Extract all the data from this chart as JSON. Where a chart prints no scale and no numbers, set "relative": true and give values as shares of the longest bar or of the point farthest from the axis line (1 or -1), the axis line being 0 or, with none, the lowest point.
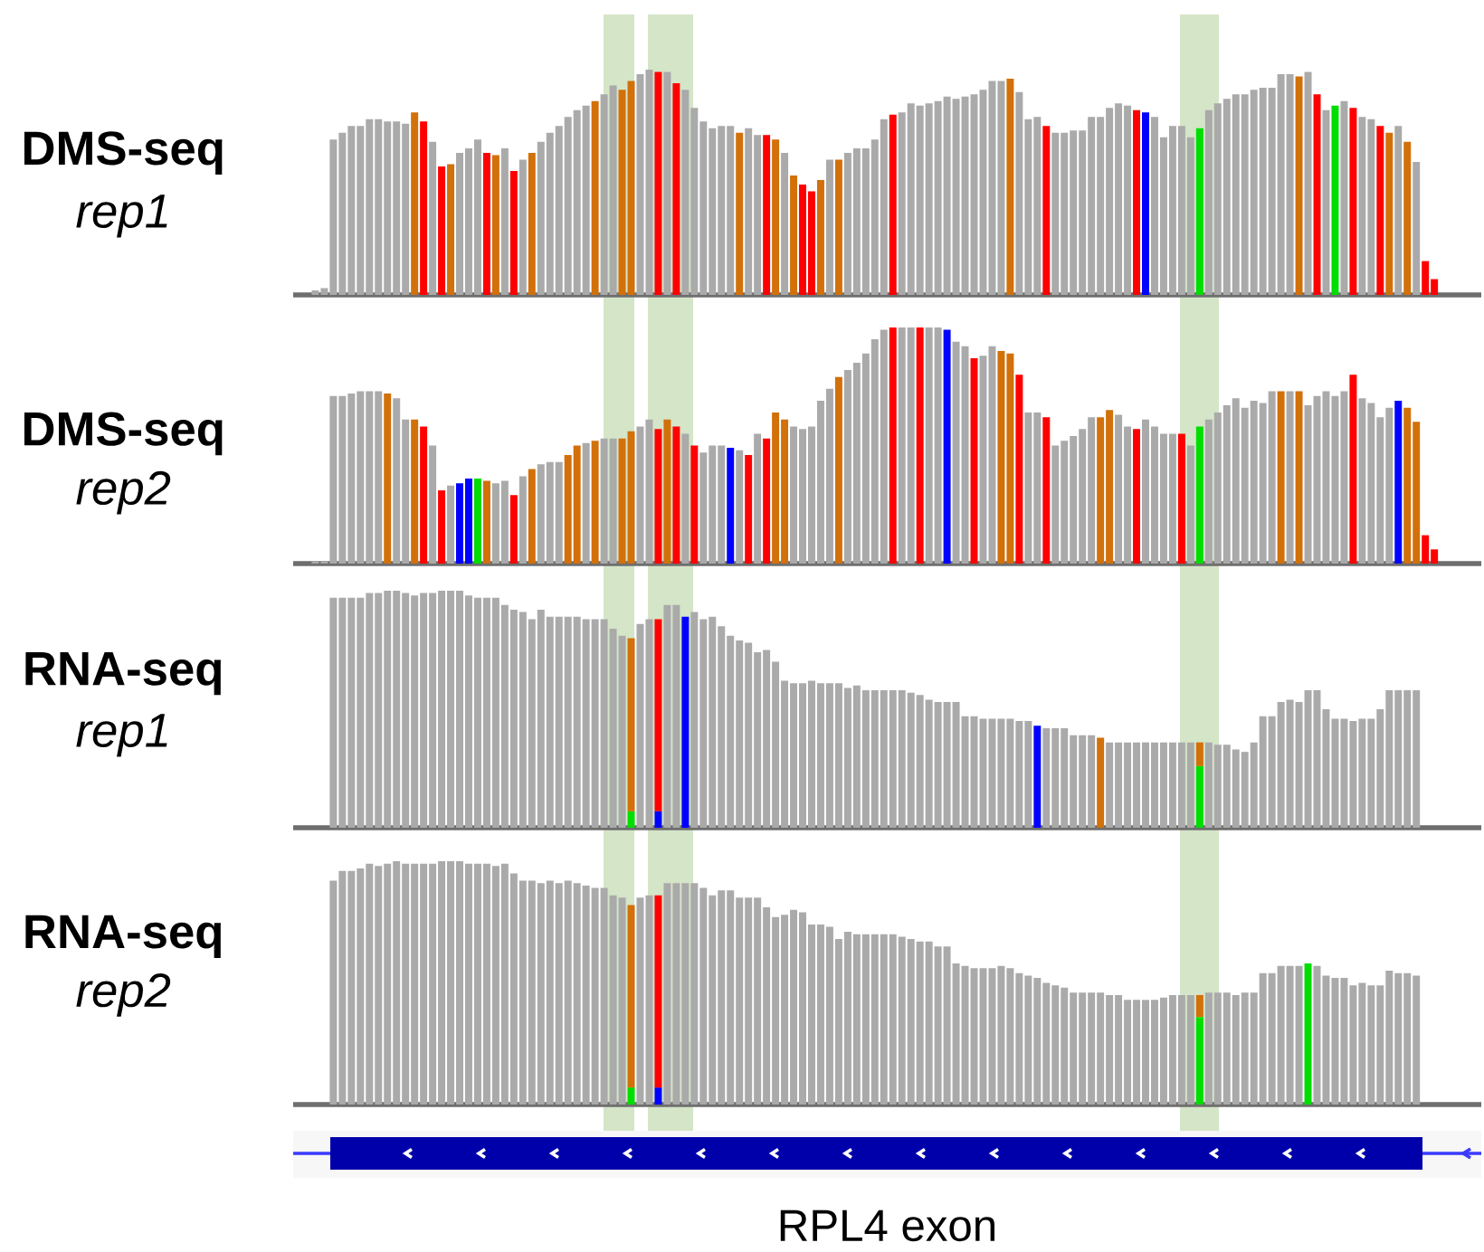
{
  "chart_data": [
    {
      "type": "bar",
      "title": "DMS-seq",
      "subtitle": "rep1",
      "relative": true,
      "categories": [
        null,
        null,
        null,
        null,
        null,
        null,
        null,
        null,
        null,
        null,
        null,
        null,
        null,
        null,
        null,
        null,
        null,
        null,
        null,
        null,
        null,
        null,
        null,
        null,
        null,
        null,
        null,
        null,
        null,
        null,
        null,
        null,
        null,
        null,
        null,
        null,
        null,
        null,
        null,
        null,
        null,
        null,
        null,
        null,
        null,
        null,
        null,
        null,
        null,
        null,
        null,
        null,
        null,
        null,
        null,
        null,
        null,
        null,
        null,
        null,
        null,
        null,
        null,
        null,
        null,
        null,
        null,
        null,
        null,
        null,
        null,
        null,
        null,
        null,
        null,
        null,
        null,
        null,
        null,
        null,
        null,
        null,
        null,
        null,
        null,
        null,
        null,
        null,
        null,
        null,
        null,
        null,
        null,
        null,
        null,
        null,
        null,
        null,
        null,
        null,
        null,
        null,
        null,
        null,
        null,
        null,
        null,
        null,
        null,
        null,
        null,
        null,
        null,
        null,
        null,
        null,
        null,
        null,
        null,
        null,
        null,
        null,
        null,
        null,
        null
      ],
      "series": [
        {
          "values": [
            0.02,
            0.03,
            0.69,
            0.72,
            0.75,
            0.75,
            0.78,
            0.78,
            0.77,
            0.77,
            0.76,
            0.81,
            0.77,
            0.68,
            0.57,
            0.58,
            0.63,
            0.65,
            0.69,
            0.63,
            0.62,
            0.65,
            0.55,
            0.6,
            0.63,
            0.68,
            0.72,
            0.75,
            0.79,
            0.82,
            0.84,
            0.86,
            0.89,
            0.93,
            0.91,
            0.95,
            0.98,
            1,
            0.99,
            0.99,
            0.94,
            0.91,
            0.83,
            0.77,
            0.74,
            0.75,
            0.75,
            0.72,
            0.74,
            0.71,
            0.71,
            0.69,
            0.63,
            0.53,
            0.49,
            0.46,
            0.51,
            0.6,
            0.6,
            0.63,
            0.65,
            0.65,
            0.69,
            0.78,
            0.8,
            0.81,
            0.85,
            0.84,
            0.85,
            0.86,
            0.88,
            0.87,
            0.88,
            0.89,
            0.91,
            0.95,
            0.95,
            0.96,
            0.9,
            0.78,
            0.79,
            0.75,
            0.72,
            0.72,
            0.73,
            0.73,
            0.79,
            0.79,
            0.83,
            0.85,
            0.84,
            0.82,
            0.81,
            0.79,
            0.7,
            0.75,
            0.75,
            0.7,
            0.74,
            0.82,
            0.85,
            0.87,
            0.89,
            0.89,
            0.91,
            0.92,
            0.92,
            0.98,
            0.98,
            0.97,
            0.99,
            0.89,
            0.82,
            0.84,
            0.86,
            0.83,
            0.79,
            0.78,
            0.75,
            0.72,
            0.75,
            0.68,
            0.59,
            0.15,
            0.07
          ],
          "colors": [
            "#aaaaaa",
            "#aaaaaa",
            "#aaaaaa",
            "#aaaaaa",
            "#aaaaaa",
            "#aaaaaa",
            "#aaaaaa",
            "#aaaaaa",
            "#aaaaaa",
            "#aaaaaa",
            "#aaaaaa",
            "#d2700a",
            "#ff0000",
            "#aaaaaa",
            "#ff0000",
            "#d2700a",
            "#aaaaaa",
            "#aaaaaa",
            "#aaaaaa",
            "#ff0000",
            "#d2700a",
            "#aaaaaa",
            "#ff0000",
            "#aaaaaa",
            "#d2700a",
            "#aaaaaa",
            "#aaaaaa",
            "#aaaaaa",
            "#aaaaaa",
            "#aaaaaa",
            "#aaaaaa",
            "#d2700a",
            "#aaaaaa",
            "#aaaaaa",
            "#d2700a",
            "#d2700a",
            "#aaaaaa",
            "#aaaaaa",
            "#ff0000",
            "#aaaaaa",
            "#ff0000",
            "#aaaaaa",
            "#aaaaaa",
            "#aaaaaa",
            "#aaaaaa",
            "#aaaaaa",
            "#aaaaaa",
            "#d2700a",
            "#aaaaaa",
            "#aaaaaa",
            "#ff0000",
            "#d2700a",
            "#aaaaaa",
            "#d2700a",
            "#ff0000",
            "#ff0000",
            "#d2700a",
            "#aaaaaa",
            "#d2700a",
            "#aaaaaa",
            "#aaaaaa",
            "#aaaaaa",
            "#aaaaaa",
            "#aaaaaa",
            "#ff0000",
            "#aaaaaa",
            "#aaaaaa",
            "#aaaaaa",
            "#aaaaaa",
            "#aaaaaa",
            "#aaaaaa",
            "#aaaaaa",
            "#aaaaaa",
            "#aaaaaa",
            "#aaaaaa",
            "#aaaaaa",
            "#aaaaaa",
            "#d2700a",
            "#aaaaaa",
            "#aaaaaa",
            "#aaaaaa",
            "#ff0000",
            "#aaaaaa",
            "#aaaaaa",
            "#aaaaaa",
            "#aaaaaa",
            "#aaaaaa",
            "#aaaaaa",
            "#aaaaaa",
            "#aaaaaa",
            "#aaaaaa",
            "#ff0000",
            "#0000ff",
            "#aaaaaa",
            "#aaaaaa",
            "#aaaaaa",
            "#aaaaaa",
            "#aaaaaa",
            "#00dd00",
            "#aaaaaa",
            "#aaaaaa",
            "#aaaaaa",
            "#aaaaaa",
            "#aaaaaa",
            "#aaaaaa",
            "#aaaaaa",
            "#aaaaaa",
            "#aaaaaa",
            "#aaaaaa",
            "#d2700a",
            "#aaaaaa",
            "#ff0000",
            "#aaaaaa",
            "#00dd00",
            "#aaaaaa",
            "#ff0000",
            "#aaaaaa",
            "#aaaaaa",
            "#ff0000",
            "#d2700a",
            "#aaaaaa",
            "#d2700a",
            "#aaaaaa",
            "#ff0000",
            "#ff0000"
          ]
        }
      ]
    },
    {
      "type": "bar",
      "title": "DMS-seq",
      "subtitle": "rep2",
      "relative": true,
      "categories": [
        null,
        null,
        null,
        null,
        null,
        null,
        null,
        null,
        null,
        null,
        null,
        null,
        null,
        null,
        null,
        null,
        null,
        null,
        null,
        null,
        null,
        null,
        null,
        null,
        null,
        null,
        null,
        null,
        null,
        null,
        null,
        null,
        null,
        null,
        null,
        null,
        null,
        null,
        null,
        null,
        null,
        null,
        null,
        null,
        null,
        null,
        null,
        null,
        null,
        null,
        null,
        null,
        null,
        null,
        null,
        null,
        null,
        null,
        null,
        null,
        null,
        null,
        null,
        null,
        null,
        null,
        null,
        null,
        null,
        null,
        null,
        null,
        null,
        null,
        null,
        null,
        null,
        null,
        null,
        null,
        null,
        null,
        null,
        null,
        null,
        null,
        null,
        null,
        null,
        null,
        null,
        null,
        null,
        null,
        null,
        null,
        null,
        null,
        null,
        null,
        null,
        null,
        null,
        null,
        null,
        null,
        null,
        null,
        null,
        null,
        null,
        null,
        null,
        null,
        null,
        null,
        null,
        null,
        null,
        null,
        null,
        null,
        null,
        null,
        null
      ],
      "series": [
        {
          "values": [
            0.01,
            0.01,
            0.71,
            0.71,
            0.72,
            0.73,
            0.73,
            0.73,
            0.72,
            0.7,
            0.61,
            0.61,
            0.58,
            0.5,
            0.31,
            0.33,
            0.34,
            0.36,
            0.36,
            0.35,
            0.34,
            0.35,
            0.29,
            0.37,
            0.4,
            0.42,
            0.43,
            0.43,
            0.46,
            0.5,
            0.51,
            0.52,
            0.53,
            0.53,
            0.53,
            0.56,
            0.58,
            0.61,
            0.57,
            0.61,
            0.58,
            0.55,
            0.5,
            0.47,
            0.5,
            0.5,
            0.49,
            0.48,
            0.46,
            0.55,
            0.53,
            0.64,
            0.61,
            0.58,
            0.57,
            0.58,
            0.69,
            0.74,
            0.79,
            0.82,
            0.85,
            0.89,
            0.95,
            0.99,
            1,
            1,
            1,
            1,
            1,
            1,
            0.99,
            0.94,
            0.92,
            0.87,
            0.88,
            0.92,
            0.9,
            0.89,
            0.8,
            0.64,
            0.64,
            0.62,
            0.5,
            0.52,
            0.54,
            0.57,
            0.62,
            0.62,
            0.65,
            0.63,
            0.58,
            0.57,
            0.61,
            0.58,
            0.55,
            0.55,
            0.55,
            0.5,
            0.58,
            0.61,
            0.64,
            0.67,
            0.7,
            0.66,
            0.69,
            0.68,
            0.73,
            0.73,
            0.73,
            0.73,
            0.67,
            0.71,
            0.73,
            0.71,
            0.73,
            0.8,
            0.7,
            0.68,
            0.62,
            0.66,
            0.69,
            0.66,
            0.6,
            0.12,
            0.06
          ],
          "colors": [
            "#aaaaaa",
            "#aaaaaa",
            "#aaaaaa",
            "#aaaaaa",
            "#aaaaaa",
            "#aaaaaa",
            "#aaaaaa",
            "#aaaaaa",
            "#d2700a",
            "#aaaaaa",
            "#aaaaaa",
            "#d2700a",
            "#ff0000",
            "#aaaaaa",
            "#ff0000",
            "#aaaaaa",
            "#0000ff",
            "#0000ff",
            "#00dd00",
            "#d2700a",
            "#aaaaaa",
            "#aaaaaa",
            "#ff0000",
            "#aaaaaa",
            "#d2700a",
            "#aaaaaa",
            "#aaaaaa",
            "#aaaaaa",
            "#d2700a",
            "#d2700a",
            "#aaaaaa",
            "#d2700a",
            "#aaaaaa",
            "#aaaaaa",
            "#d2700a",
            "#d2700a",
            "#aaaaaa",
            "#aaaaaa",
            "#ff0000",
            "#d2700a",
            "#ff0000",
            "#aaaaaa",
            "#ff0000",
            "#aaaaaa",
            "#aaaaaa",
            "#aaaaaa",
            "#0000ff",
            "#aaaaaa",
            "#ff0000",
            "#aaaaaa",
            "#ff0000",
            "#d2700a",
            "#d2700a",
            "#aaaaaa",
            "#aaaaaa",
            "#aaaaaa",
            "#aaaaaa",
            "#aaaaaa",
            "#d2700a",
            "#aaaaaa",
            "#aaaaaa",
            "#aaaaaa",
            "#aaaaaa",
            "#aaaaaa",
            "#ff0000",
            "#aaaaaa",
            "#aaaaaa",
            "#ff0000",
            "#aaaaaa",
            "#aaaaaa",
            "#0000ff",
            "#aaaaaa",
            "#aaaaaa",
            "#ff0000",
            "#aaaaaa",
            "#aaaaaa",
            "#d2700a",
            "#d2700a",
            "#ff0000",
            "#aaaaaa",
            "#aaaaaa",
            "#ff0000",
            "#aaaaaa",
            "#aaaaaa",
            "#aaaaaa",
            "#aaaaaa",
            "#aaaaaa",
            "#d2700a",
            "#d2700a",
            "#aaaaaa",
            "#aaaaaa",
            "#ff0000",
            "#aaaaaa",
            "#aaaaaa",
            "#aaaaaa",
            "#aaaaaa",
            "#ff0000",
            "#aaaaaa",
            "#00dd00",
            "#aaaaaa",
            "#aaaaaa",
            "#aaaaaa",
            "#aaaaaa",
            "#aaaaaa",
            "#aaaaaa",
            "#aaaaaa",
            "#aaaaaa",
            "#d2700a",
            "#aaaaaa",
            "#d2700a",
            "#aaaaaa",
            "#aaaaaa",
            "#aaaaaa",
            "#aaaaaa",
            "#aaaaaa",
            "#ff0000",
            "#aaaaaa",
            "#aaaaaa",
            "#aaaaaa",
            "#aaaaaa",
            "#0000ff",
            "#d2700a",
            "#d2700a",
            "#ff0000",
            "#ff0000"
          ]
        }
      ]
    },
    {
      "type": "bar",
      "title": "RNA-seq",
      "subtitle": "rep1",
      "relative": true,
      "stacked": true,
      "categories": [
        null,
        null,
        null,
        null,
        null,
        null,
        null,
        null,
        null,
        null,
        null,
        null,
        null,
        null,
        null,
        null,
        null,
        null,
        null,
        null,
        null,
        null,
        null,
        null,
        null,
        null,
        null,
        null,
        null,
        null,
        null,
        null,
        null,
        null,
        null,
        null,
        null,
        null,
        null,
        null,
        null,
        null,
        null,
        null,
        null,
        null,
        null,
        null,
        null,
        null,
        null,
        null,
        null,
        null,
        null,
        null,
        null,
        null,
        null,
        null,
        null,
        null,
        null,
        null,
        null,
        null,
        null,
        null,
        null,
        null,
        null,
        null,
        null,
        null,
        null,
        null,
        null,
        null,
        null,
        null,
        null,
        null,
        null,
        null,
        null,
        null,
        null,
        null,
        null,
        null,
        null,
        null,
        null,
        null,
        null,
        null,
        null,
        null,
        null,
        null,
        null,
        null,
        null,
        null,
        null,
        null,
        null,
        null,
        null,
        null,
        null,
        null,
        null,
        null,
        null,
        null,
        null,
        null,
        null,
        null,
        null,
        null,
        null,
        null,
        null
      ],
      "series": [
        {
          "values": [
            null,
            null,
            null,
            null,
            null,
            null,
            null,
            null,
            null,
            null,
            null,
            null,
            null,
            null,
            null,
            null,
            null,
            null,
            null,
            null,
            null,
            null,
            null,
            null,
            null,
            null,
            null,
            null,
            null,
            null,
            null,
            null,
            null,
            null,
            null,
            0.07,
            null,
            null,
            0.07,
            null,
            null,
            null,
            null,
            null,
            null,
            null,
            null,
            null,
            null,
            null,
            null,
            null,
            null,
            null,
            null,
            null,
            null,
            null,
            null,
            null,
            null,
            null,
            null,
            null,
            null,
            null,
            null,
            null,
            null,
            null,
            null,
            null,
            null,
            null,
            null,
            null,
            null,
            null,
            null,
            null,
            null,
            null,
            null,
            null,
            null,
            null,
            null,
            null,
            null,
            null,
            null,
            null,
            null,
            null,
            null,
            null,
            null,
            null,
            0.26,
            null,
            null,
            null,
            null,
            null,
            null,
            null,
            null,
            null,
            null,
            null,
            null,
            null,
            null,
            null,
            null,
            null,
            null,
            null,
            null,
            null,
            null,
            null,
            null,
            null,
            null
          ],
          "colors": [
            null,
            null,
            null,
            null,
            null,
            null,
            null,
            null,
            null,
            null,
            null,
            null,
            null,
            null,
            null,
            null,
            null,
            null,
            null,
            null,
            null,
            null,
            null,
            null,
            null,
            null,
            null,
            null,
            null,
            null,
            null,
            null,
            null,
            null,
            null,
            "#00dd00",
            null,
            null,
            "#0000ff",
            null,
            null,
            null,
            null,
            null,
            null,
            null,
            null,
            null,
            null,
            null,
            null,
            null,
            null,
            null,
            null,
            null,
            null,
            null,
            null,
            null,
            null,
            null,
            null,
            null,
            null,
            null,
            null,
            null,
            null,
            null,
            null,
            null,
            null,
            null,
            null,
            null,
            null,
            null,
            null,
            null,
            null,
            null,
            null,
            null,
            null,
            null,
            null,
            null,
            null,
            null,
            null,
            null,
            null,
            null,
            null,
            null,
            null,
            null,
            "#00dd00",
            null,
            null,
            null,
            null,
            null,
            null,
            null,
            null,
            null,
            null,
            null,
            null,
            null,
            null,
            null,
            null,
            null,
            null,
            null,
            null,
            null,
            null,
            null,
            null,
            null,
            null
          ]
        },
        {
          "values": [
            null,
            null,
            0.97,
            0.97,
            0.97,
            0.97,
            0.99,
            0.99,
            1,
            1,
            0.99,
            0.98,
            0.99,
            0.99,
            1,
            1,
            1,
            0.98,
            0.97,
            0.97,
            0.97,
            0.94,
            0.92,
            0.91,
            0.88,
            0.92,
            0.89,
            0.89,
            0.89,
            0.89,
            0.88,
            0.88,
            0.88,
            0.84,
            0.81,
            0.73,
            0.86,
            0.88,
            0.81,
            0.94,
            0.94,
            0.89,
            0.91,
            0.88,
            0.89,
            0.85,
            0.81,
            0.79,
            0.78,
            0.74,
            0.75,
            0.7,
            0.62,
            0.61,
            0.61,
            0.62,
            0.61,
            0.61,
            0.61,
            0.59,
            0.6,
            0.58,
            0.58,
            0.58,
            0.58,
            0.58,
            0.57,
            0.56,
            0.54,
            0.53,
            0.53,
            0.53,
            0.47,
            0.47,
            0.46,
            0.46,
            0.46,
            0.46,
            0.45,
            0.45,
            0.43,
            0.42,
            0.42,
            0.42,
            0.39,
            0.39,
            0.39,
            0.38,
            0.36,
            0.36,
            0.36,
            0.36,
            0.36,
            0.36,
            0.36,
            0.36,
            0.36,
            0.36,
            0.1,
            0.36,
            0.35,
            0.35,
            0.33,
            0.32,
            0.36,
            0.47,
            0.47,
            0.53,
            0.54,
            0.53,
            0.58,
            0.58,
            0.5,
            0.46,
            0.46,
            0.45,
            0.46,
            0.46,
            0.5,
            0.58,
            0.58,
            0.58,
            0.58,
            null,
            null
          ],
          "colors": [
            "#aaaaaa",
            "#aaaaaa",
            "#aaaaaa",
            "#aaaaaa",
            "#aaaaaa",
            "#aaaaaa",
            "#aaaaaa",
            "#aaaaaa",
            "#aaaaaa",
            "#aaaaaa",
            "#aaaaaa",
            "#aaaaaa",
            "#aaaaaa",
            "#aaaaaa",
            "#aaaaaa",
            "#aaaaaa",
            "#aaaaaa",
            "#aaaaaa",
            "#aaaaaa",
            "#aaaaaa",
            "#aaaaaa",
            "#aaaaaa",
            "#aaaaaa",
            "#aaaaaa",
            "#aaaaaa",
            "#aaaaaa",
            "#aaaaaa",
            "#aaaaaa",
            "#aaaaaa",
            "#aaaaaa",
            "#aaaaaa",
            "#aaaaaa",
            "#aaaaaa",
            "#aaaaaa",
            "#aaaaaa",
            "#d2700a",
            "#aaaaaa",
            "#aaaaaa",
            "#ff0000",
            "#aaaaaa",
            "#aaaaaa",
            "#0000ff",
            "#aaaaaa",
            "#aaaaaa",
            "#aaaaaa",
            "#aaaaaa",
            "#aaaaaa",
            "#aaaaaa",
            "#aaaaaa",
            "#aaaaaa",
            "#aaaaaa",
            "#aaaaaa",
            "#aaaaaa",
            "#aaaaaa",
            "#aaaaaa",
            "#aaaaaa",
            "#aaaaaa",
            "#aaaaaa",
            "#aaaaaa",
            "#aaaaaa",
            "#aaaaaa",
            "#aaaaaa",
            "#aaaaaa",
            "#aaaaaa",
            "#aaaaaa",
            "#aaaaaa",
            "#aaaaaa",
            "#aaaaaa",
            "#aaaaaa",
            "#aaaaaa",
            "#aaaaaa",
            "#aaaaaa",
            "#aaaaaa",
            "#aaaaaa",
            "#aaaaaa",
            "#aaaaaa",
            "#aaaaaa",
            "#aaaaaa",
            "#aaaaaa",
            "#aaaaaa",
            "#0000ff",
            "#aaaaaa",
            "#aaaaaa",
            "#aaaaaa",
            "#aaaaaa",
            "#aaaaaa",
            "#aaaaaa",
            "#d2700a",
            "#aaaaaa",
            "#aaaaaa",
            "#aaaaaa",
            "#aaaaaa",
            "#aaaaaa",
            "#aaaaaa",
            "#aaaaaa",
            "#aaaaaa",
            "#aaaaaa",
            "#aaaaaa",
            "#d2700a",
            "#aaaaaa",
            "#aaaaaa",
            "#aaaaaa",
            "#aaaaaa",
            "#aaaaaa",
            "#aaaaaa",
            "#aaaaaa",
            "#aaaaaa",
            "#aaaaaa",
            "#aaaaaa",
            "#aaaaaa",
            "#aaaaaa",
            "#aaaaaa",
            "#aaaaaa",
            "#aaaaaa",
            "#aaaaaa",
            "#aaaaaa",
            "#aaaaaa",
            "#aaaaaa",
            "#aaaaaa",
            "#aaaaaa",
            "#aaaaaa",
            "#aaaaaa",
            "#aaaaaa",
            "#aaaaaa",
            "#aaaaaa"
          ]
        }
      ]
    },
    {
      "type": "bar",
      "title": "RNA-seq",
      "subtitle": "rep2",
      "xlabel": "RPL4 exon",
      "relative": true,
      "stacked": true,
      "categories": [
        null,
        null,
        null,
        null,
        null,
        null,
        null,
        null,
        null,
        null,
        null,
        null,
        null,
        null,
        null,
        null,
        null,
        null,
        null,
        null,
        null,
        null,
        null,
        null,
        null,
        null,
        null,
        null,
        null,
        null,
        null,
        null,
        null,
        null,
        null,
        null,
        null,
        null,
        null,
        null,
        null,
        null,
        null,
        null,
        null,
        null,
        null,
        null,
        null,
        null,
        null,
        null,
        null,
        null,
        null,
        null,
        null,
        null,
        null,
        null,
        null,
        null,
        null,
        null,
        null,
        null,
        null,
        null,
        null,
        null,
        null,
        null,
        null,
        null,
        null,
        null,
        null,
        null,
        null,
        null,
        null,
        null,
        null,
        null,
        null,
        null,
        null,
        null,
        null,
        null,
        null,
        null,
        null,
        null,
        null,
        null,
        null,
        null,
        null,
        null,
        null,
        null,
        null,
        null,
        null,
        null,
        null,
        null,
        null,
        null,
        null,
        null,
        null,
        null,
        null,
        null,
        null,
        null,
        null,
        null,
        null,
        null,
        null,
        null,
        null
      ],
      "series": [
        {
          "values": [
            null,
            null,
            null,
            null,
            null,
            null,
            null,
            null,
            null,
            null,
            null,
            null,
            null,
            null,
            null,
            null,
            null,
            null,
            null,
            null,
            null,
            null,
            null,
            null,
            null,
            null,
            null,
            null,
            null,
            null,
            null,
            null,
            null,
            null,
            null,
            0.07,
            null,
            null,
            0.07,
            null,
            null,
            null,
            null,
            null,
            null,
            null,
            null,
            null,
            null,
            null,
            null,
            null,
            null,
            null,
            null,
            null,
            null,
            null,
            null,
            null,
            null,
            null,
            null,
            null,
            null,
            null,
            null,
            null,
            null,
            null,
            null,
            null,
            null,
            null,
            null,
            null,
            null,
            null,
            null,
            null,
            null,
            null,
            null,
            null,
            null,
            null,
            null,
            null,
            null,
            null,
            null,
            null,
            null,
            null,
            null,
            null,
            null,
            null,
            0.36,
            null,
            null,
            null,
            null,
            null,
            null,
            null,
            null,
            null,
            null,
            null,
            null,
            null,
            null,
            null,
            null,
            null,
            null,
            null,
            null,
            null,
            null,
            null,
            null,
            null,
            null
          ],
          "colors": [
            null,
            null,
            null,
            null,
            null,
            null,
            null,
            null,
            null,
            null,
            null,
            null,
            null,
            null,
            null,
            null,
            null,
            null,
            null,
            null,
            null,
            null,
            null,
            null,
            null,
            null,
            null,
            null,
            null,
            null,
            null,
            null,
            null,
            null,
            null,
            "#00dd00",
            null,
            null,
            "#0000ff",
            null,
            null,
            null,
            null,
            null,
            null,
            null,
            null,
            null,
            null,
            null,
            null,
            null,
            null,
            null,
            null,
            null,
            null,
            null,
            null,
            null,
            null,
            null,
            null,
            null,
            null,
            null,
            null,
            null,
            null,
            null,
            null,
            null,
            null,
            null,
            null,
            null,
            null,
            null,
            null,
            null,
            null,
            null,
            null,
            null,
            null,
            null,
            null,
            null,
            null,
            null,
            null,
            null,
            null,
            null,
            null,
            null,
            null,
            null,
            "#00dd00",
            null,
            null,
            null,
            null,
            null,
            null,
            null,
            null,
            null,
            null,
            null,
            null,
            null,
            null,
            null,
            null,
            null,
            null,
            null,
            null,
            null,
            null,
            null,
            null,
            null,
            null
          ]
        },
        {
          "values": [
            null,
            null,
            0.92,
            0.96,
            0.96,
            0.97,
            0.99,
            0.98,
            0.99,
            1,
            0.99,
            0.99,
            0.99,
            0.99,
            1,
            1,
            1,
            0.99,
            0.99,
            0.99,
            0.98,
            0.99,
            0.95,
            0.92,
            0.92,
            0.91,
            0.92,
            0.91,
            0.92,
            0.91,
            0.9,
            0.89,
            0.89,
            0.86,
            0.85,
            0.75,
            0.85,
            0.86,
            0.79,
            0.91,
            0.91,
            0.91,
            0.91,
            0.89,
            0.86,
            0.88,
            0.88,
            0.85,
            0.85,
            0.85,
            0.81,
            0.77,
            0.78,
            0.8,
            0.79,
            0.74,
            0.74,
            0.73,
            0.68,
            0.71,
            0.7,
            0.7,
            0.7,
            0.7,
            0.7,
            0.69,
            0.68,
            0.67,
            0.67,
            0.65,
            0.65,
            0.58,
            0.57,
            0.56,
            0.56,
            0.56,
            0.57,
            0.56,
            0.54,
            0.53,
            0.52,
            0.5,
            0.49,
            0.48,
            0.46,
            0.46,
            0.46,
            0.46,
            0.45,
            0.45,
            0.43,
            0.43,
            0.43,
            0.43,
            0.44,
            0.45,
            0.45,
            0.45,
            0.09,
            0.46,
            0.46,
            0.46,
            0.45,
            0.46,
            0.46,
            0.54,
            0.54,
            0.57,
            0.57,
            0.57,
            0.58,
            0.57,
            0.53,
            0.52,
            0.52,
            0.49,
            0.5,
            0.49,
            0.49,
            0.55,
            0.54,
            0.54,
            0.53,
            null,
            null
          ],
          "colors": [
            "#aaaaaa",
            "#aaaaaa",
            "#aaaaaa",
            "#aaaaaa",
            "#aaaaaa",
            "#aaaaaa",
            "#aaaaaa",
            "#aaaaaa",
            "#aaaaaa",
            "#aaaaaa",
            "#aaaaaa",
            "#aaaaaa",
            "#aaaaaa",
            "#aaaaaa",
            "#aaaaaa",
            "#aaaaaa",
            "#aaaaaa",
            "#aaaaaa",
            "#aaaaaa",
            "#aaaaaa",
            "#aaaaaa",
            "#aaaaaa",
            "#aaaaaa",
            "#aaaaaa",
            "#aaaaaa",
            "#aaaaaa",
            "#aaaaaa",
            "#aaaaaa",
            "#aaaaaa",
            "#aaaaaa",
            "#aaaaaa",
            "#aaaaaa",
            "#aaaaaa",
            "#aaaaaa",
            "#aaaaaa",
            "#d2700a",
            "#aaaaaa",
            "#aaaaaa",
            "#ff0000",
            "#aaaaaa",
            "#aaaaaa",
            "#aaaaaa",
            "#aaaaaa",
            "#aaaaaa",
            "#aaaaaa",
            "#aaaaaa",
            "#aaaaaa",
            "#aaaaaa",
            "#aaaaaa",
            "#aaaaaa",
            "#aaaaaa",
            "#aaaaaa",
            "#aaaaaa",
            "#aaaaaa",
            "#aaaaaa",
            "#aaaaaa",
            "#aaaaaa",
            "#aaaaaa",
            "#aaaaaa",
            "#aaaaaa",
            "#aaaaaa",
            "#aaaaaa",
            "#aaaaaa",
            "#aaaaaa",
            "#aaaaaa",
            "#aaaaaa",
            "#aaaaaa",
            "#aaaaaa",
            "#aaaaaa",
            "#aaaaaa",
            "#aaaaaa",
            "#aaaaaa",
            "#aaaaaa",
            "#aaaaaa",
            "#aaaaaa",
            "#aaaaaa",
            "#aaaaaa",
            "#aaaaaa",
            "#aaaaaa",
            "#aaaaaa",
            "#aaaaaa",
            "#aaaaaa",
            "#aaaaaa",
            "#aaaaaa",
            "#aaaaaa",
            "#aaaaaa",
            "#aaaaaa",
            "#aaaaaa",
            "#aaaaaa",
            "#aaaaaa",
            "#aaaaaa",
            "#aaaaaa",
            "#aaaaaa",
            "#aaaaaa",
            "#aaaaaa",
            "#aaaaaa",
            "#aaaaaa",
            "#aaaaaa",
            "#d2700a",
            "#aaaaaa",
            "#aaaaaa",
            "#aaaaaa",
            "#aaaaaa",
            "#aaaaaa",
            "#aaaaaa",
            "#aaaaaa",
            "#aaaaaa",
            "#aaaaaa",
            "#aaaaaa",
            "#aaaaaa",
            "#00dd00",
            "#aaaaaa",
            "#aaaaaa",
            "#aaaaaa",
            "#aaaaaa",
            "#aaaaaa",
            "#aaaaaa",
            "#aaaaaa",
            "#aaaaaa",
            "#aaaaaa",
            "#aaaaaa",
            "#aaaaaa",
            "#aaaaaa",
            "#aaaaaa",
            "#aaaaaa"
          ]
        }
      ]
    }
  ]
}
